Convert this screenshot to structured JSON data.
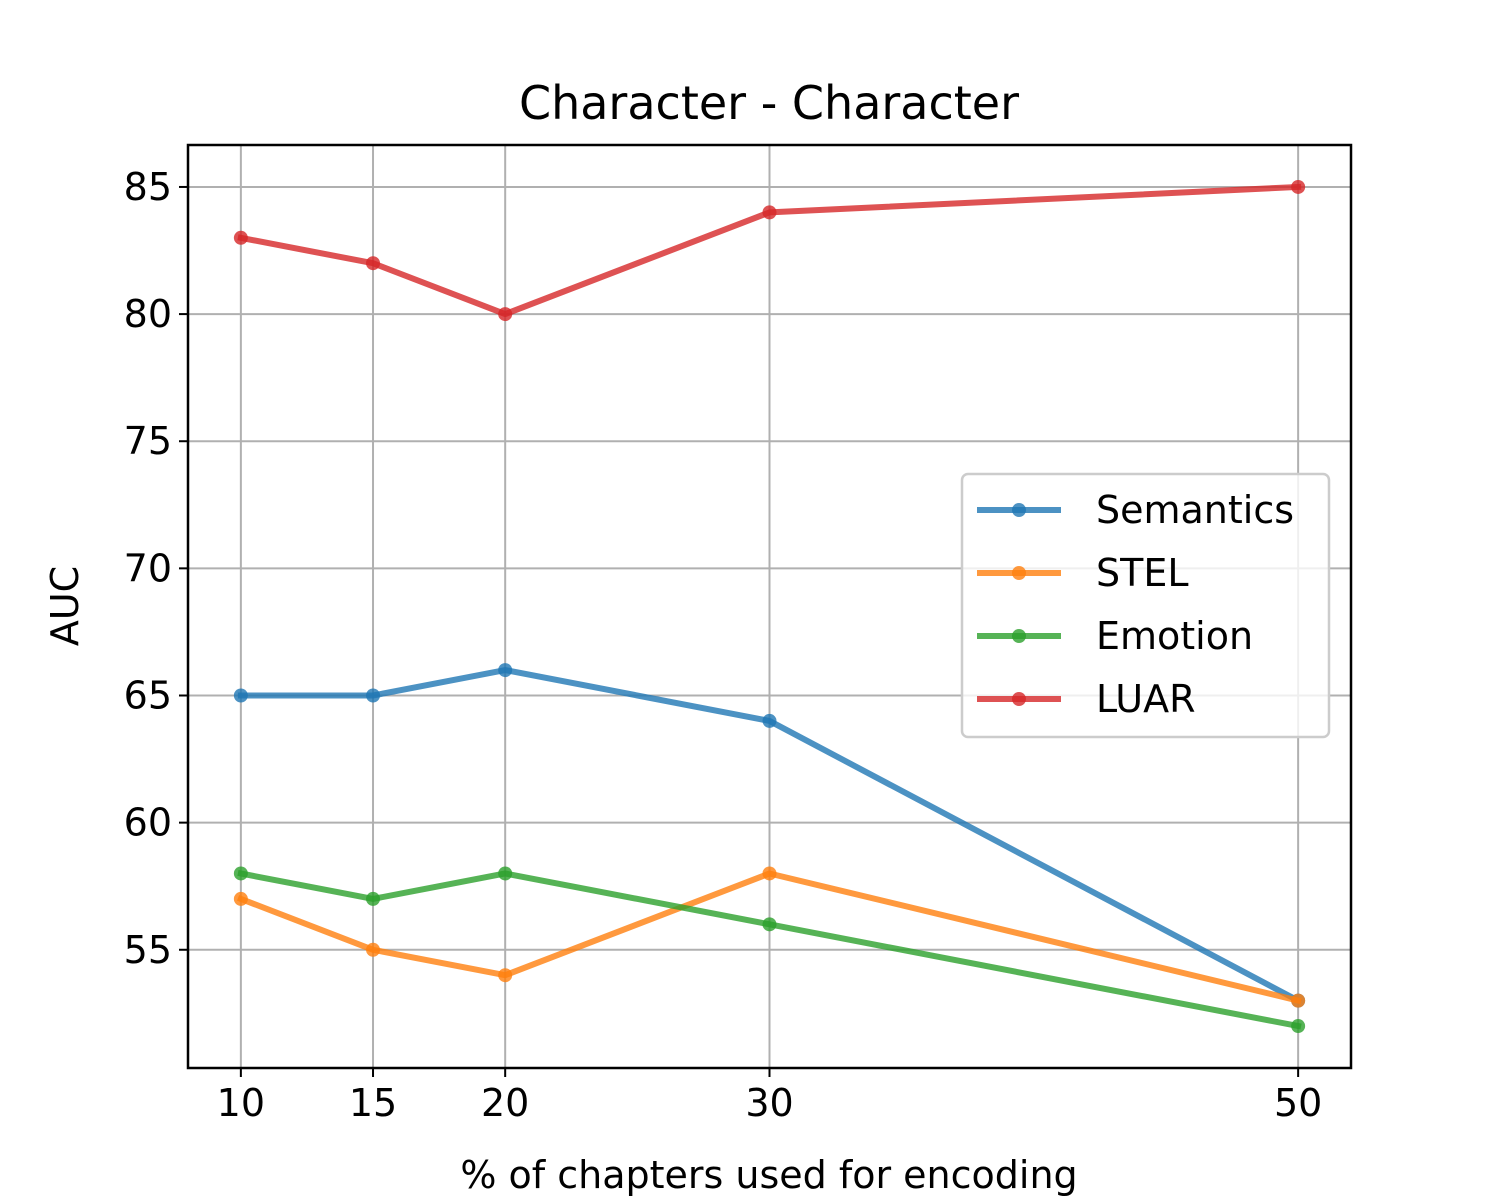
{
  "chart_data": {
    "type": "line",
    "title": "Character - Character",
    "xlabel": "% of chapters used for encoding",
    "ylabel": "AUC",
    "x": [
      10,
      15,
      20,
      30,
      50
    ],
    "xticks": [
      "10",
      "15",
      "20",
      "30",
      "50"
    ],
    "yticks": [
      "55",
      "60",
      "65",
      "70",
      "75",
      "80",
      "85"
    ],
    "xlim": [
      8,
      52
    ],
    "ylim": [
      50.35,
      86.65
    ],
    "grid": true,
    "legend_position": "center-right",
    "series": [
      {
        "name": "Semantics",
        "color": "#1f77b4",
        "values": [
          65,
          65,
          66,
          64,
          53
        ]
      },
      {
        "name": "STEL",
        "color": "#ff7f0e",
        "values": [
          57,
          55,
          54,
          58,
          53
        ]
      },
      {
        "name": "Emotion",
        "color": "#2ca02c",
        "values": [
          58,
          57,
          58,
          56,
          52
        ]
      },
      {
        "name": "LUAR",
        "color": "#d62728",
        "values": [
          83,
          82,
          80,
          84,
          85
        ]
      }
    ]
  }
}
